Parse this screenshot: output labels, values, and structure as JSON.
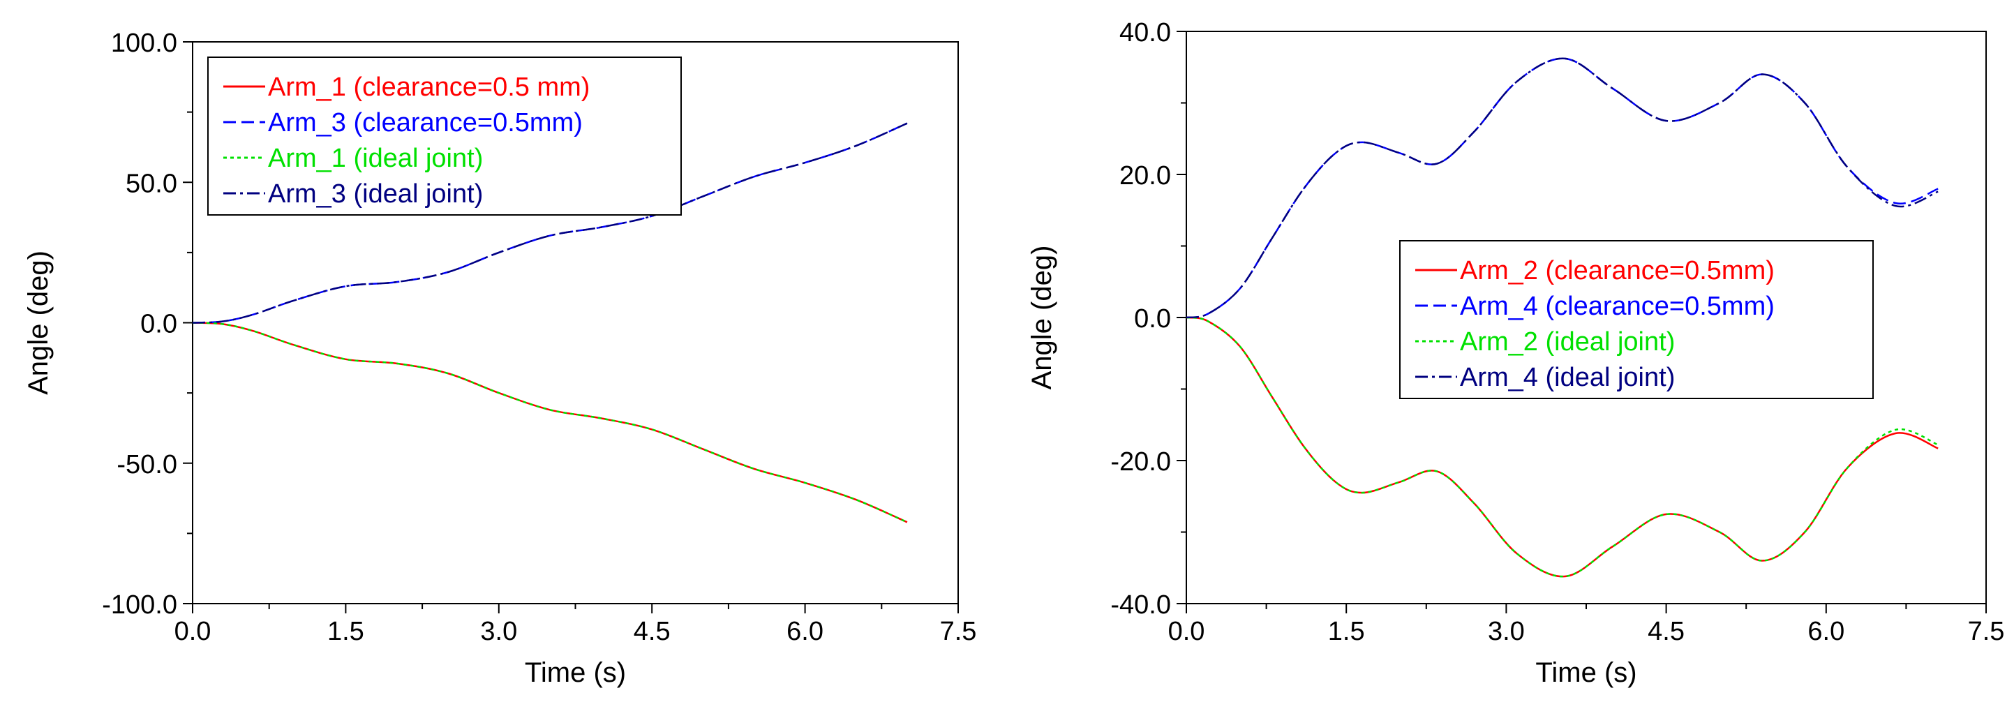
{
  "colors": {
    "red": "#ff0000",
    "blue": "#0000ff",
    "green": "#00e000",
    "navy": "#000080",
    "axis": "#000000"
  },
  "chart_data": [
    {
      "type": "line",
      "title": "",
      "xlabel": "Time (s)",
      "ylabel": "Angle (deg)",
      "xlim": [
        0,
        7.5
      ],
      "ylim": [
        -100,
        100
      ],
      "xticks": [
        0,
        1.5,
        3,
        4.5,
        6,
        7.5
      ],
      "xtick_labels": [
        "0.0",
        "1.5",
        "3.0",
        "4.5",
        "6.0",
        "7.5"
      ],
      "yticks": [
        100,
        50,
        0,
        -50,
        -100
      ],
      "ytick_labels": [
        "100.0",
        "50.0",
        "0.0",
        "-50.0",
        "-100.0"
      ],
      "legend_position": "top-left",
      "series": [
        {
          "name": "Arm_1 (clearance=0.5 mm)",
          "color": "red",
          "dash": "solid",
          "x": [
            0,
            0.3,
            0.6,
            1.0,
            1.5,
            2.0,
            2.5,
            3.0,
            3.5,
            4.0,
            4.5,
            5.0,
            5.5,
            6.0,
            6.5,
            7.0
          ],
          "y": [
            0,
            -0.5,
            -3,
            -8,
            -13,
            -14.5,
            -18,
            -25,
            -31,
            -34,
            -38,
            -45,
            -52,
            -57,
            -63,
            -71
          ]
        },
        {
          "name": "Arm_3 (clearance=0.5mm)",
          "color": "blue",
          "dash": "dashed",
          "x": [
            0,
            0.3,
            0.6,
            1.0,
            1.5,
            2.0,
            2.5,
            3.0,
            3.5,
            4.0,
            4.5,
            5.0,
            5.5,
            6.0,
            6.5,
            7.0
          ],
          "y": [
            0,
            0.5,
            3,
            8,
            13,
            14.5,
            18,
            25,
            31,
            34,
            38,
            45,
            52,
            57,
            63,
            71
          ]
        },
        {
          "name": "Arm_1 (ideal joint)",
          "color": "green",
          "dash": "dotted",
          "x": [
            0,
            0.3,
            0.6,
            1.0,
            1.5,
            2.0,
            2.5,
            3.0,
            3.5,
            4.0,
            4.5,
            5.0,
            5.5,
            6.0,
            6.5,
            7.0
          ],
          "y": [
            0,
            -0.5,
            -3,
            -8,
            -13,
            -14.5,
            -18,
            -25,
            -31,
            -34,
            -38,
            -45,
            -52,
            -57,
            -63,
            -71
          ]
        },
        {
          "name": "Arm_3 (ideal joint)",
          "color": "navy",
          "dash": "dashdot",
          "x": [
            0,
            0.3,
            0.6,
            1.0,
            1.5,
            2.0,
            2.5,
            3.0,
            3.5,
            4.0,
            4.5,
            5.0,
            5.5,
            6.0,
            6.5,
            7.0
          ],
          "y": [
            0,
            0.5,
            3,
            8,
            13,
            14.5,
            18,
            25,
            31,
            34,
            38,
            45,
            52,
            57,
            63,
            71
          ]
        }
      ]
    },
    {
      "type": "line",
      "title": "",
      "xlabel": "Time (s)",
      "ylabel": "Angle (deg)",
      "xlim": [
        0,
        7.5
      ],
      "ylim": [
        -40,
        40
      ],
      "xticks": [
        0,
        1.5,
        3,
        4.5,
        6,
        7.5
      ],
      "xtick_labels": [
        "0.0",
        "1.5",
        "3.0",
        "4.5",
        "6.0",
        "7.5"
      ],
      "yticks": [
        40,
        20,
        0,
        -20,
        -40
      ],
      "ytick_labels": [
        "40.0",
        "20.0",
        "0.0",
        "-20.0",
        "-40.0"
      ],
      "legend_position": "center-right",
      "series": [
        {
          "name": "Arm_2 (clearance=0.5mm)",
          "color": "red",
          "dash": "solid",
          "x": [
            0,
            0.2,
            0.5,
            0.8,
            1.1,
            1.4,
            1.65,
            2.0,
            2.35,
            2.7,
            3.1,
            3.55,
            4.0,
            4.5,
            5.0,
            5.4,
            5.8,
            6.2,
            6.65,
            7.05
          ],
          "y": [
            0,
            -0.5,
            -4,
            -11,
            -18,
            -23,
            -24.5,
            -23,
            -21.5,
            -26,
            -33,
            -36.2,
            -32,
            -27.5,
            -30,
            -34,
            -30,
            -21,
            -16.2,
            -18.3
          ]
        },
        {
          "name": "Arm_4 (clearance=0.5mm)",
          "color": "blue",
          "dash": "dashed",
          "x": [
            0,
            0.2,
            0.5,
            0.8,
            1.1,
            1.4,
            1.65,
            2.0,
            2.35,
            2.7,
            3.1,
            3.55,
            4.0,
            4.5,
            5.0,
            5.4,
            5.8,
            6.2,
            6.65,
            7.05
          ],
          "y": [
            0,
            0.5,
            4,
            11,
            18,
            23,
            24.5,
            23,
            21.5,
            26,
            33,
            36.2,
            32,
            27.5,
            30,
            34,
            30,
            21,
            16.0,
            18.0
          ]
        },
        {
          "name": "Arm_2 (ideal joint)",
          "color": "green",
          "dash": "dotted",
          "x": [
            0,
            0.2,
            0.5,
            0.8,
            1.1,
            1.4,
            1.65,
            2.0,
            2.35,
            2.7,
            3.1,
            3.55,
            4.0,
            4.5,
            5.0,
            5.4,
            5.8,
            6.2,
            6.65,
            7.05
          ],
          "y": [
            0,
            -0.5,
            -4,
            -11,
            -18,
            -23,
            -24.5,
            -23,
            -21.5,
            -26,
            -33,
            -36.2,
            -32,
            -27.5,
            -30,
            -34,
            -30,
            -21,
            -15.7,
            -17.8
          ]
        },
        {
          "name": "Arm_4 (ideal joint)",
          "color": "navy",
          "dash": "dashdot",
          "x": [
            0,
            0.2,
            0.5,
            0.8,
            1.1,
            1.4,
            1.65,
            2.0,
            2.35,
            2.7,
            3.1,
            3.55,
            4.0,
            4.5,
            5.0,
            5.4,
            5.8,
            6.2,
            6.65,
            7.05
          ],
          "y": [
            0,
            0.5,
            4,
            11,
            18,
            23,
            24.5,
            23,
            21.5,
            26,
            33,
            36.2,
            32,
            27.5,
            30,
            34,
            30,
            21,
            15.6,
            17.6
          ]
        }
      ]
    }
  ]
}
